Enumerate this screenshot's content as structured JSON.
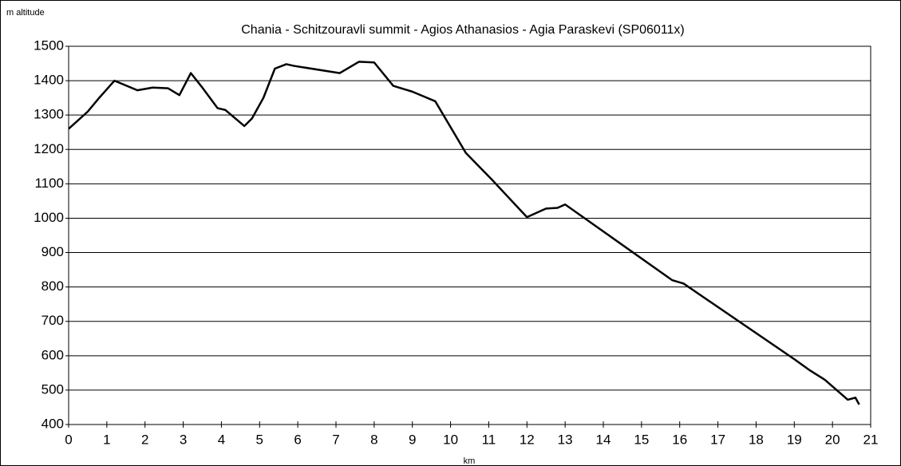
{
  "chart_data": {
    "type": "line",
    "title": "Chania - Schitzouravli summit - Agios Athanasios - Agia Paraskevi (SP06011x)",
    "y_label": "m altitude",
    "x_label": "km",
    "x": [
      0,
      0.5,
      0.8,
      1.2,
      1.8,
      2.2,
      2.6,
      2.9,
      3.2,
      3.5,
      3.9,
      4.1,
      4.6,
      4.8,
      5.1,
      5.4,
      5.7,
      5.9,
      7.1,
      7.6,
      8.0,
      8.5,
      9.0,
      9.6,
      10.4,
      11.1,
      12.0,
      12.5,
      12.8,
      13.0,
      15.8,
      16.1,
      19.0,
      19.4,
      19.8,
      20.4,
      20.6,
      20.7
    ],
    "series": [
      {
        "name": "altitude",
        "color": "#000000",
        "values": [
          1260,
          1310,
          1350,
          1400,
          1372,
          1380,
          1378,
          1358,
          1422,
          1380,
          1320,
          1315,
          1268,
          1290,
          1350,
          1435,
          1448,
          1443,
          1422,
          1455,
          1453,
          1385,
          1368,
          1340,
          1190,
          1110,
          1003,
          1028,
          1030,
          1040,
          820,
          810,
          590,
          558,
          530,
          472,
          478,
          458
        ]
      }
    ],
    "xlim": [
      0,
      21
    ],
    "xticks": [
      0,
      1,
      2,
      3,
      4,
      5,
      6,
      7,
      8,
      9,
      10,
      11,
      12,
      13,
      14,
      15,
      16,
      17,
      18,
      19,
      20,
      21
    ],
    "ylim": [
      400,
      1500
    ],
    "yticks": [
      400,
      500,
      600,
      700,
      800,
      900,
      1000,
      1100,
      1200,
      1300,
      1400,
      1500
    ],
    "grid": true
  }
}
